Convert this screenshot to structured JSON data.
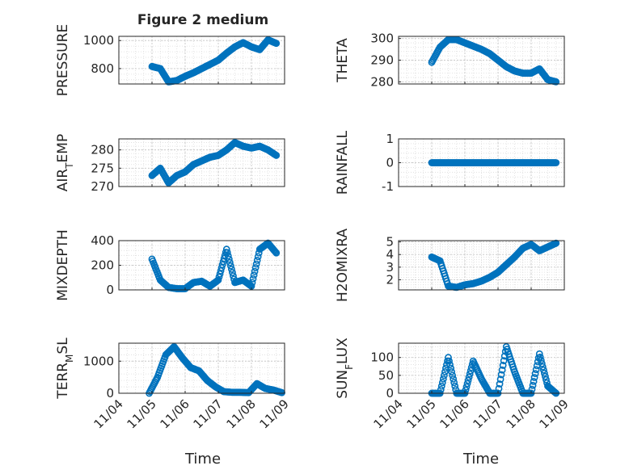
{
  "figure": {
    "title": "Figure 2 medium",
    "xlabel": "Time",
    "date_ticks": [
      "11/04",
      "11/05",
      "11/06",
      "11/07",
      "11/08",
      "11/09"
    ],
    "marker_color": "#0072BD",
    "axis_color": "#262626",
    "grid_color": "#dcdcdc"
  },
  "chart_data": [
    {
      "type": "scatter",
      "ylabel": "PRESSURE",
      "ylabel_sub": "",
      "ylabel_tail": "",
      "ylim": [
        690,
        1030
      ],
      "yticks": [
        "800",
        "1000"
      ],
      "ytick_values": [
        800,
        1000
      ],
      "x": [
        "11/05 00:00",
        "11/05 06:00",
        "11/05 12:00",
        "11/05 18:00",
        "11/06 00:00",
        "11/06 06:00",
        "11/06 12:00",
        "11/06 18:00",
        "11/07 00:00",
        "11/07 06:00",
        "11/07 12:00",
        "11/07 18:00",
        "11/08 00:00",
        "11/08 06:00",
        "11/08 12:00",
        "11/08 18:00"
      ],
      "y": [
        815,
        800,
        705,
        715,
        745,
        770,
        800,
        830,
        860,
        910,
        955,
        985,
        955,
        935,
        1005,
        980
      ]
    },
    {
      "type": "scatter",
      "ylabel": "THETA",
      "ylabel_sub": "",
      "ylabel_tail": "",
      "ylim": [
        279,
        301
      ],
      "yticks": [
        "280",
        "290",
        "300"
      ],
      "ytick_values": [
        280,
        290,
        300
      ],
      "x": [
        "11/05 00:00",
        "11/05 06:00",
        "11/05 12:00",
        "11/05 18:00",
        "11/06 00:00",
        "11/06 06:00",
        "11/06 12:00",
        "11/06 18:00",
        "11/07 00:00",
        "11/07 06:00",
        "11/07 12:00",
        "11/07 18:00",
        "11/08 00:00",
        "11/08 06:00",
        "11/08 12:00",
        "11/08 18:00"
      ],
      "y": [
        289,
        296,
        299.5,
        299.5,
        298,
        296.5,
        295,
        293,
        290,
        287,
        285,
        284,
        284,
        286,
        281,
        280
      ]
    },
    {
      "type": "scatter",
      "ylabel": "AIR",
      "ylabel_sub": "T",
      "ylabel_tail": "EMP",
      "ylim": [
        270,
        283
      ],
      "yticks": [
        "270",
        "275",
        "280"
      ],
      "ytick_values": [
        270,
        275,
        280
      ],
      "x": [
        "11/05 00:00",
        "11/05 06:00",
        "11/05 12:00",
        "11/05 18:00",
        "11/06 00:00",
        "11/06 06:00",
        "11/06 12:00",
        "11/06 18:00",
        "11/07 00:00",
        "11/07 06:00",
        "11/07 12:00",
        "11/07 18:00",
        "11/08 00:00",
        "11/08 06:00",
        "11/08 12:00",
        "11/08 18:00"
      ],
      "y": [
        273,
        275,
        271,
        273,
        274,
        276,
        277,
        278,
        278.5,
        280,
        282,
        281,
        280.5,
        281,
        280,
        278.5
      ]
    },
    {
      "type": "scatter",
      "ylabel": "RAINFALL",
      "ylabel_sub": "",
      "ylabel_tail": "",
      "ylim": [
        -1,
        1
      ],
      "yticks": [
        "-1",
        "0",
        "1"
      ],
      "ytick_values": [
        -1,
        0,
        1
      ],
      "x": [
        "11/05 00:00",
        "11/05 06:00",
        "11/05 12:00",
        "11/05 18:00",
        "11/06 00:00",
        "11/06 06:00",
        "11/06 12:00",
        "11/06 18:00",
        "11/07 00:00",
        "11/07 06:00",
        "11/07 12:00",
        "11/07 18:00",
        "11/08 00:00",
        "11/08 06:00",
        "11/08 12:00",
        "11/08 18:00"
      ],
      "y": [
        0,
        0,
        0,
        0,
        0,
        0,
        0,
        0,
        0,
        0,
        0,
        0,
        0,
        0,
        0,
        0
      ]
    },
    {
      "type": "scatter",
      "ylabel": "MIXDEPTH",
      "ylabel_sub": "",
      "ylabel_tail": "",
      "ylim": [
        0,
        400
      ],
      "yticks": [
        "0",
        "200",
        "400"
      ],
      "ytick_values": [
        0,
        200,
        400
      ],
      "x": [
        "11/05 00:00",
        "11/05 06:00",
        "11/05 12:00",
        "11/05 18:00",
        "11/06 00:00",
        "11/06 06:00",
        "11/06 12:00",
        "11/06 18:00",
        "11/07 00:00",
        "11/07 06:00",
        "11/07 12:00",
        "11/07 18:00",
        "11/08 00:00",
        "11/08 06:00",
        "11/08 12:00",
        "11/08 18:00"
      ],
      "y": [
        250,
        80,
        20,
        10,
        10,
        60,
        70,
        30,
        80,
        330,
        60,
        80,
        30,
        330,
        380,
        300
      ]
    },
    {
      "type": "scatter",
      "ylabel": "H2OMIXRA",
      "ylabel_sub": "",
      "ylabel_tail": "",
      "ylim": [
        1.2,
        5.1
      ],
      "yticks": [
        "2",
        "3",
        "4",
        "5"
      ],
      "ytick_values": [
        2,
        3,
        4,
        5
      ],
      "x": [
        "11/05 00:00",
        "11/05 06:00",
        "11/05 12:00",
        "11/05 18:00",
        "11/06 00:00",
        "11/06 06:00",
        "11/06 12:00",
        "11/06 18:00",
        "11/07 00:00",
        "11/07 06:00",
        "11/07 12:00",
        "11/07 18:00",
        "11/08 00:00",
        "11/08 06:00",
        "11/08 12:00",
        "11/08 18:00"
      ],
      "y": [
        3.8,
        3.5,
        1.5,
        1.4,
        1.6,
        1.7,
        1.9,
        2.2,
        2.6,
        3.2,
        3.8,
        4.5,
        4.8,
        4.3,
        4.6,
        4.9
      ]
    },
    {
      "type": "scatter",
      "ylabel": "TERR",
      "ylabel_sub": "M",
      "ylabel_tail": "SL",
      "ylim": [
        0,
        1560
      ],
      "yticks": [
        "0",
        "1000"
      ],
      "ytick_values": [
        0,
        1000
      ],
      "x": [
        "11/04 22:00",
        "11/05 04:00",
        "11/05 10:00",
        "11/05 16:00",
        "11/05 22:00",
        "11/06 04:00",
        "11/06 10:00",
        "11/06 16:00",
        "11/06 22:00",
        "11/07 04:00",
        "11/07 10:00",
        "11/07 16:00",
        "11/07 22:00",
        "11/08 04:00",
        "11/08 10:00",
        "11/08 16:00",
        "11/08 22:00"
      ],
      "y": [
        0,
        500,
        1200,
        1450,
        1100,
        800,
        700,
        400,
        200,
        50,
        30,
        30,
        20,
        300,
        150,
        100,
        20
      ]
    },
    {
      "type": "scatter",
      "ylabel": "SUN",
      "ylabel_sub": "F",
      "ylabel_tail": "LUX",
      "ylim": [
        0,
        140
      ],
      "yticks": [
        "0",
        "50",
        "100"
      ],
      "ytick_values": [
        0,
        50,
        100
      ],
      "x": [
        "11/05 00:00",
        "11/05 06:00",
        "11/05 12:00",
        "11/05 18:00",
        "11/06 00:00",
        "11/06 06:00",
        "11/06 12:00",
        "11/06 18:00",
        "11/07 00:00",
        "11/07 06:00",
        "11/07 12:00",
        "11/07 18:00",
        "11/08 00:00",
        "11/08 06:00",
        "11/08 12:00",
        "11/08 18:00"
      ],
      "y": [
        0,
        0,
        100,
        0,
        0,
        90,
        40,
        0,
        0,
        130,
        60,
        0,
        0,
        110,
        20,
        0
      ]
    }
  ]
}
